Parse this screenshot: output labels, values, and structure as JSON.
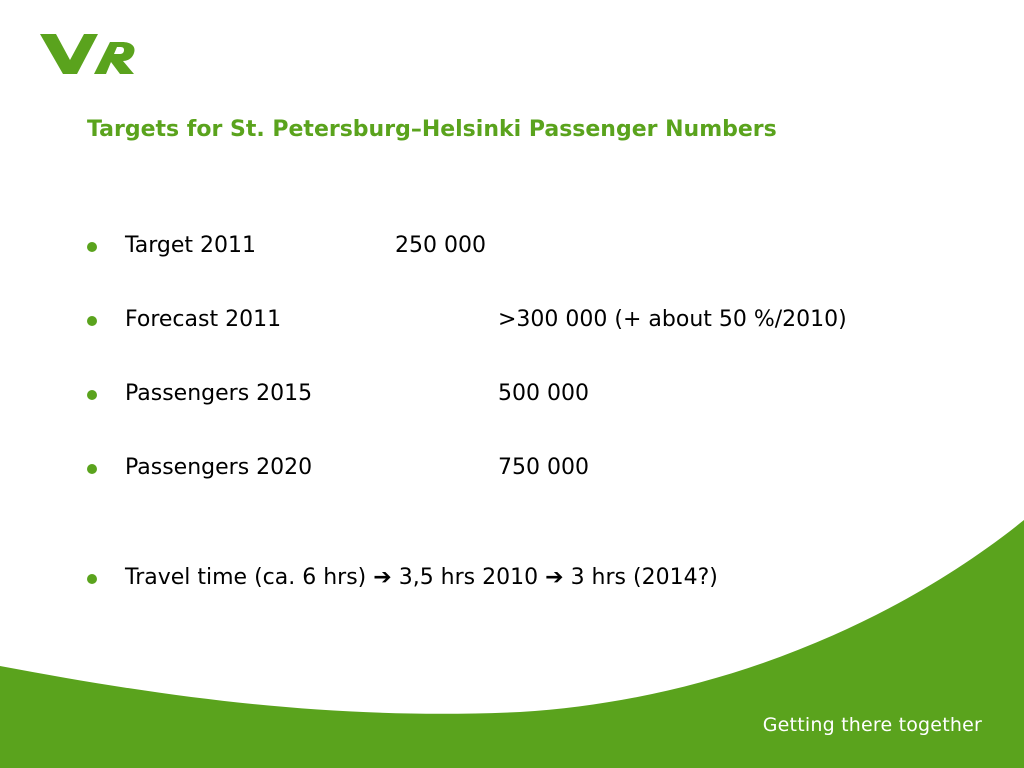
{
  "slide": {
    "title": "Targets for St. Petersburg–Helsinki Passenger Numbers",
    "logo_text": "VR",
    "tagline": "Getting there together"
  },
  "bullets": [
    {
      "label": "Target  2011",
      "value": "250 000"
    },
    {
      "label": "Forecast 2011",
      "value": ">300 000 (+ about 50 %/2010)"
    },
    {
      "label": "Passengers 2015",
      "value": "500 000"
    },
    {
      "label": "Passengers 2020",
      "value": "750 000"
    }
  ],
  "travel_time": {
    "part1": "Travel time  (ca. 6 hrs)",
    "part2": "3,5 hrs 2010",
    "part3": "3 hrs  (2014?)",
    "arrow_icon": "right-arrow-icon"
  },
  "colors": {
    "brand_green": "#5aa31d",
    "text": "#000000",
    "background": "#ffffff"
  }
}
